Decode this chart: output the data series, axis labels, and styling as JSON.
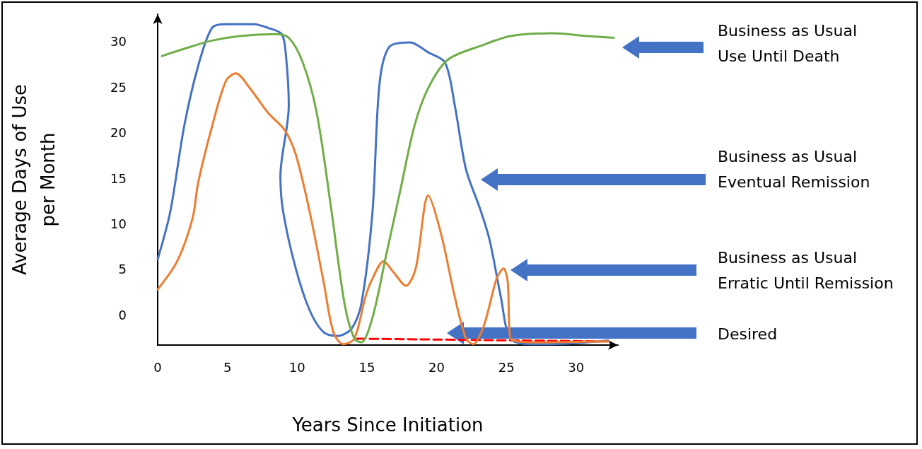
{
  "chart_data": {
    "type": "line",
    "xlabel": "Years Since Initiation",
    "ylabel": "Average Days of Use\nper Month",
    "xlim": [
      0,
      33
    ],
    "xticks": [
      0,
      5,
      10,
      15,
      20,
      25,
      30
    ],
    "ylim": [
      -3.3,
      33
    ],
    "yticks": [
      0,
      5,
      10,
      15,
      20,
      25,
      30
    ],
    "grid": false,
    "marker": "none",
    "line_style": "solid",
    "annotations": [
      "Business as Usual\nUse Until Death",
      "Business as Usual\nEventual Remission",
      "Business as Usual\nErratic Until Remission",
      "Desired"
    ],
    "series": [
      {
        "color": "#4472c4",
        "x": [
          0,
          0.9,
          1.9,
          2.9,
          3.9,
          4.9,
          6.9,
          7.9,
          8.9,
          9.2,
          9.4,
          8.8,
          9,
          9.9,
          10.9,
          11.9,
          12.9,
          13.9,
          14.6,
          15.4,
          15.9,
          16.6,
          18.1,
          19.4,
          20.6,
          21.3,
          22.1,
          23.1,
          23.8,
          24.6,
          25.3,
          26.8,
          28.3,
          32.3
        ],
        "values": [
          6.1,
          11.3,
          20.7,
          27.3,
          31.5,
          31.9,
          31.9,
          31.5,
          30.8,
          28.4,
          23,
          15.2,
          11.3,
          5.1,
          0.5,
          -1.9,
          -2.3,
          -1.5,
          1.2,
          11.3,
          25.3,
          29.4,
          29.9,
          28.8,
          27.7,
          23,
          16,
          11.7,
          8.2,
          2,
          -2.6,
          -3.2,
          -3.2,
          -2.8
        ]
      },
      {
        "color": "#ed7d31",
        "x": [
          0,
          1.4,
          2.5,
          2.9,
          3.9,
          4.9,
          5.6,
          6.6,
          7.9,
          9.1,
          9.9,
          10.9,
          11.9,
          12.6,
          13.3,
          14.1,
          14.9,
          15.4,
          16.2,
          16.9,
          17.8,
          18.5,
          19.4,
          20.3,
          21.3,
          22.1,
          22.6,
          23.4,
          24.3,
          24.8,
          25.1,
          25.3,
          27.3,
          32.3
        ],
        "values": [
          2.8,
          5.9,
          10.6,
          14.5,
          20.7,
          25.7,
          26.5,
          24.9,
          22.2,
          20.3,
          17.6,
          11.3,
          3.6,
          -1.9,
          -3.2,
          -2.6,
          2,
          4,
          5.9,
          4.7,
          3.2,
          5.1,
          13.1,
          9,
          2,
          -2.6,
          -3.2,
          -1.1,
          4,
          5.1,
          3.6,
          -2.6,
          -3,
          -2.9
        ]
      },
      {
        "color": "#70ad47",
        "x": [
          0.3,
          1.9,
          3.9,
          5.9,
          8.4,
          9.4,
          10.4,
          11.4,
          12.4,
          13.4,
          14.1,
          14.6,
          15.4,
          16.4,
          17.4,
          18.4,
          19.4,
          20.8,
          23.3,
          25.3,
          28.3,
          30.8,
          32.7
        ],
        "values": [
          28.4,
          29.2,
          30.1,
          30.6,
          30.8,
          30.4,
          27.7,
          22.2,
          12.1,
          1.2,
          -2.6,
          -3,
          -0.3,
          6.7,
          13.7,
          20.7,
          24.9,
          28,
          29.6,
          30.6,
          30.9,
          30.6,
          30.4
        ]
      },
      {
        "color": "#ff0000",
        "line_style": "dashed",
        "x": [
          14.3,
          32.3
        ],
        "values": [
          -2.6,
          -2.9
        ]
      }
    ]
  }
}
